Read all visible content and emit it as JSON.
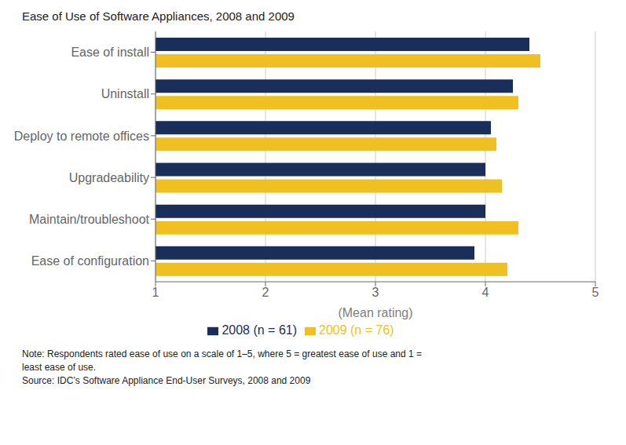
{
  "chart_data": {
    "type": "bar",
    "orientation": "horizontal",
    "title": "Ease of Use of Software Appliances, 2008 and 2009",
    "xlabel": "(Mean rating)",
    "categories": [
      "Ease of install",
      "Uninstall",
      "Deploy to remote offices",
      "Upgradeability",
      "Maintain/troubleshoot",
      "Ease of configuration"
    ],
    "series": [
      {
        "name": "2008 (n = 61)",
        "color": "#1a2e5a",
        "values": [
          4.4,
          4.25,
          4.05,
          4.0,
          4.0,
          3.9
        ]
      },
      {
        "name": "2009 (n = 76)",
        "color": "#f0c020",
        "values": [
          4.5,
          4.3,
          4.1,
          4.15,
          4.3,
          4.2
        ]
      }
    ],
    "xlim": [
      1,
      5
    ],
    "xticks": [
      1,
      2,
      3,
      4,
      5
    ],
    "grid": true,
    "legend": "bottom",
    "annotations": [
      "Note: Respondents rated ease of use on a scale of 1–5, where 5 = greatest ease of use and 1 =",
      "least ease of use.",
      "Source: IDC’s Software Appliance End-User Surveys, 2008 and 2009"
    ]
  }
}
